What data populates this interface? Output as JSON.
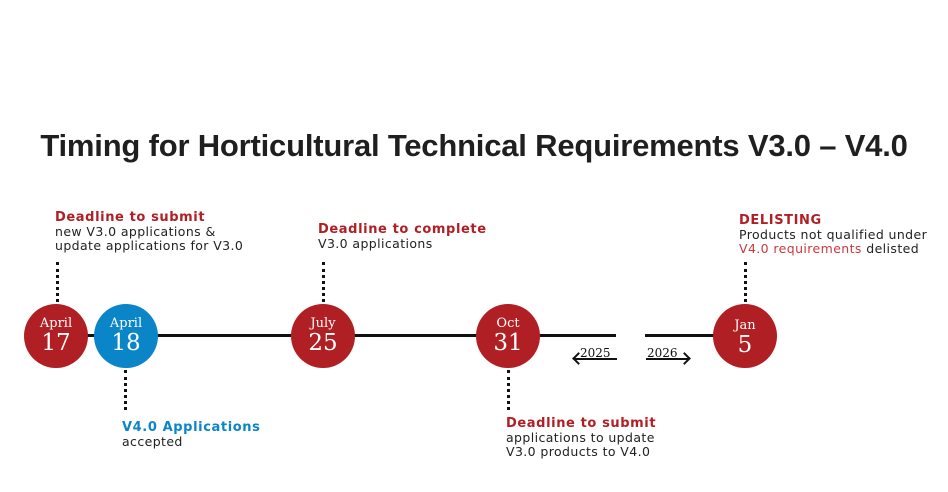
{
  "title": "Timing for Horticultural Technical Requirements V3.0 – V4.0",
  "colors": {
    "red": "#b01f24",
    "blue": "#0a86c8",
    "text": "#222222",
    "line": "#111111"
  },
  "events": [
    {
      "month": "April",
      "day": "17",
      "heading": "Deadline to submit",
      "lines": [
        "new V3.0 applications &",
        "update applications for V3.0"
      ]
    },
    {
      "month": "April",
      "day": "18",
      "heading": "V4.0 Applications",
      "lines": [
        "accepted"
      ]
    },
    {
      "month": "July",
      "day": "25",
      "heading": "Deadline to complete",
      "lines": [
        "V3.0 applications"
      ]
    },
    {
      "month": "Oct",
      "day": "31",
      "heading": "Deadline to submit",
      "lines": [
        "applications to update",
        "V3.0 products to V4.0"
      ]
    },
    {
      "month": "Jan",
      "day": "5",
      "heading": "DELISTING",
      "line1": "Products not qualified under",
      "line2_highlight": "V4.0 requirements",
      "line2_rest": " delisted"
    }
  ],
  "years": {
    "left": "2025",
    "right": "2026"
  }
}
